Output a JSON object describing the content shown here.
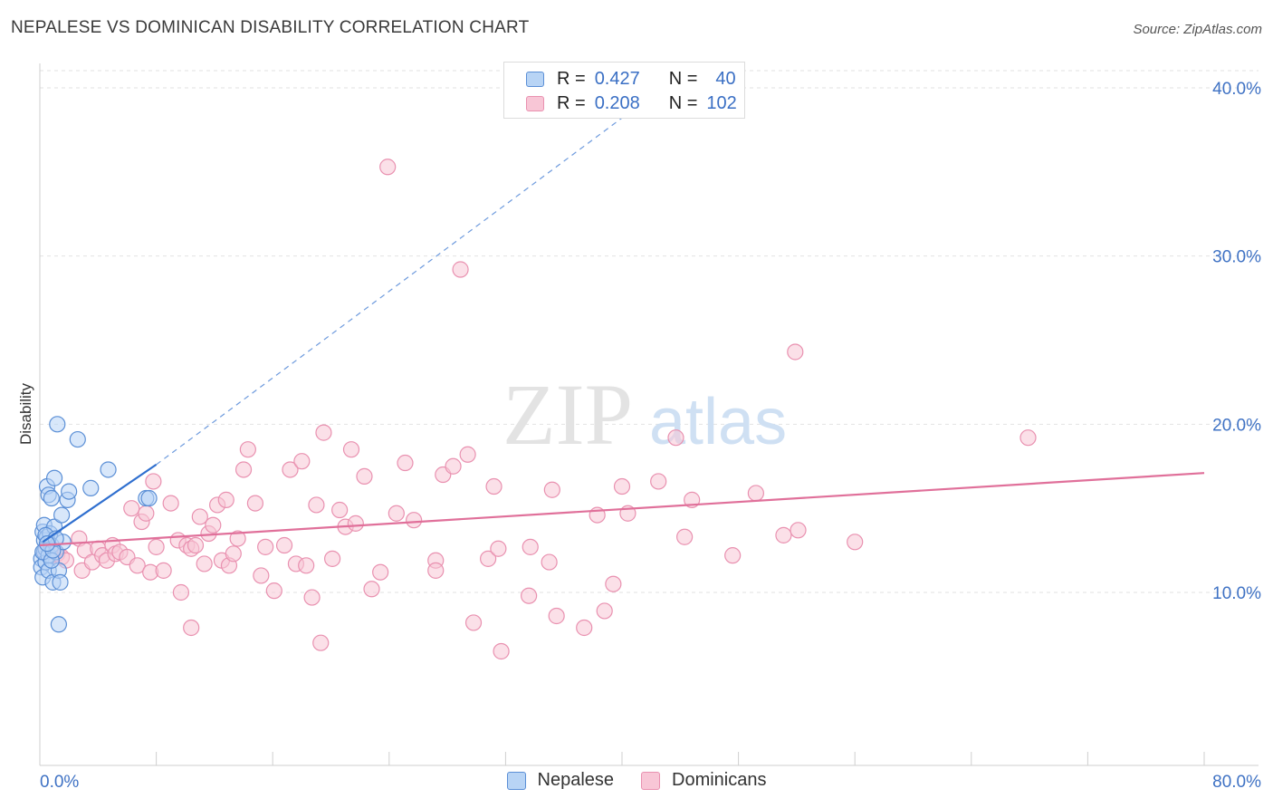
{
  "header": {
    "title": "NEPALESE VS DOMINICAN DISABILITY CORRELATION CHART",
    "source": "Source: ZipAtlas.com"
  },
  "watermark": {
    "part1": "ZIP",
    "part2": "atlas"
  },
  "legend_top": {
    "rows": [
      {
        "r_label": "R =",
        "r_value": "0.427",
        "n_label": "N =",
        "n_value": "40"
      },
      {
        "r_label": "R =",
        "r_value": "0.208",
        "n_label": "N =",
        "n_value": "102"
      }
    ]
  },
  "legend_bottom": {
    "items": [
      "Nepalese",
      "Dominicans"
    ]
  },
  "colors": {
    "nepalese_fill": "#b8d4f5",
    "nepalese_stroke": "#5b8fd6",
    "nepalese_line": "#2f6fcf",
    "dominican_fill": "#f8c6d6",
    "dominican_stroke": "#e991b0",
    "dominican_line": "#e0709a",
    "axis_text": "#3f72c4",
    "grid": "#e2e2e2"
  },
  "chart_data": {
    "type": "scatter",
    "title": "NEPALESE VS DOMINICAN DISABILITY CORRELATION CHART",
    "ylabel": "Disability",
    "xlabel": "",
    "xlim": [
      0,
      80
    ],
    "ylim": [
      0,
      42
    ],
    "x_tick_labels": [
      "0.0%",
      "80.0%"
    ],
    "y_ticks": [
      10,
      20,
      30,
      40
    ],
    "y_tick_labels": [
      "10.0%",
      "20.0%",
      "30.0%",
      "40.0%"
    ],
    "grid": true,
    "legend_position": "top-center",
    "series": [
      {
        "name": "Nepalese",
        "r": 0.427,
        "n": 40,
        "trend": {
          "x0": 0.2,
          "y0": 13.0,
          "x1": 8.0,
          "y1": 17.6,
          "dash_to_x": 42.0,
          "dash_to_y": 39.5
        },
        "points": [
          [
            0.1,
            12.0
          ],
          [
            0.1,
            11.5
          ],
          [
            0.2,
            10.9
          ],
          [
            0.2,
            13.6
          ],
          [
            0.3,
            12.4
          ],
          [
            0.3,
            13.1
          ],
          [
            0.3,
            14.0
          ],
          [
            0.4,
            11.8
          ],
          [
            0.4,
            12.6
          ],
          [
            0.5,
            13.3
          ],
          [
            0.5,
            16.3
          ],
          [
            0.6,
            15.8
          ],
          [
            0.6,
            12.2
          ],
          [
            0.6,
            11.3
          ],
          [
            0.7,
            13.5
          ],
          [
            0.8,
            15.6
          ],
          [
            0.8,
            12.8
          ],
          [
            0.9,
            10.6
          ],
          [
            1.0,
            16.8
          ],
          [
            1.0,
            13.9
          ],
          [
            1.1,
            12.4
          ],
          [
            1.2,
            20.0
          ],
          [
            1.3,
            11.3
          ],
          [
            1.4,
            10.6
          ],
          [
            1.5,
            14.6
          ],
          [
            1.6,
            13.0
          ],
          [
            1.9,
            15.5
          ],
          [
            2.0,
            16.0
          ],
          [
            1.3,
            8.1
          ],
          [
            2.6,
            19.1
          ],
          [
            3.5,
            16.2
          ],
          [
            4.7,
            17.3
          ],
          [
            7.3,
            15.6
          ],
          [
            7.5,
            15.6
          ],
          [
            0.2,
            12.4
          ],
          [
            0.4,
            13.4
          ],
          [
            0.8,
            11.9
          ],
          [
            0.9,
            12.5
          ],
          [
            1.1,
            13.2
          ],
          [
            0.5,
            12.9
          ]
        ]
      },
      {
        "name": "Dominicans",
        "r": 0.208,
        "n": 102,
        "trend": {
          "x0": 0.0,
          "y0": 12.8,
          "x1": 80.0,
          "y1": 17.1
        },
        "points": [
          [
            0.4,
            12.4
          ],
          [
            0.8,
            12.2
          ],
          [
            1.2,
            12.3
          ],
          [
            1.5,
            12.1
          ],
          [
            1.8,
            11.9
          ],
          [
            2.7,
            13.2
          ],
          [
            2.9,
            11.3
          ],
          [
            3.1,
            12.5
          ],
          [
            3.6,
            11.8
          ],
          [
            4.0,
            12.6
          ],
          [
            4.3,
            12.2
          ],
          [
            4.6,
            11.9
          ],
          [
            5.0,
            12.8
          ],
          [
            5.2,
            12.3
          ],
          [
            5.5,
            12.4
          ],
          [
            6.0,
            12.1
          ],
          [
            6.3,
            15.0
          ],
          [
            6.7,
            11.6
          ],
          [
            7.0,
            14.2
          ],
          [
            7.3,
            14.7
          ],
          [
            7.6,
            11.2
          ],
          [
            7.8,
            16.6
          ],
          [
            8.0,
            12.7
          ],
          [
            8.5,
            11.3
          ],
          [
            9.0,
            15.3
          ],
          [
            9.5,
            13.1
          ],
          [
            9.7,
            10.0
          ],
          [
            10.1,
            12.8
          ],
          [
            10.4,
            12.6
          ],
          [
            10.7,
            12.8
          ],
          [
            11.0,
            14.5
          ],
          [
            11.3,
            11.7
          ],
          [
            11.6,
            13.5
          ],
          [
            11.9,
            14.0
          ],
          [
            12.2,
            15.2
          ],
          [
            12.5,
            11.9
          ],
          [
            12.8,
            15.5
          ],
          [
            13.0,
            11.6
          ],
          [
            13.3,
            12.3
          ],
          [
            13.6,
            13.2
          ],
          [
            14.0,
            17.3
          ],
          [
            14.3,
            18.5
          ],
          [
            14.8,
            15.3
          ],
          [
            15.2,
            11.0
          ],
          [
            15.5,
            12.7
          ],
          [
            16.1,
            10.1
          ],
          [
            16.8,
            12.8
          ],
          [
            17.2,
            17.3
          ],
          [
            17.6,
            11.7
          ],
          [
            18.0,
            17.8
          ],
          [
            18.3,
            11.6
          ],
          [
            18.7,
            9.7
          ],
          [
            19.0,
            15.2
          ],
          [
            19.5,
            19.5
          ],
          [
            20.1,
            12.0
          ],
          [
            20.6,
            14.9
          ],
          [
            21.0,
            13.9
          ],
          [
            21.4,
            18.5
          ],
          [
            21.7,
            14.1
          ],
          [
            22.3,
            16.9
          ],
          [
            22.8,
            10.2
          ],
          [
            23.4,
            11.2
          ],
          [
            23.9,
            35.3
          ],
          [
            24.5,
            14.7
          ],
          [
            25.1,
            17.7
          ],
          [
            25.7,
            14.3
          ],
          [
            27.2,
            11.9
          ],
          [
            27.7,
            17.0
          ],
          [
            28.4,
            17.5
          ],
          [
            28.9,
            29.2
          ],
          [
            29.4,
            18.2
          ],
          [
            29.8,
            8.2
          ],
          [
            30.8,
            12.0
          ],
          [
            31.2,
            16.3
          ],
          [
            31.5,
            12.6
          ],
          [
            31.7,
            6.5
          ],
          [
            33.6,
            9.8
          ],
          [
            33.7,
            12.7
          ],
          [
            35.0,
            11.8
          ],
          [
            35.2,
            16.1
          ],
          [
            35.5,
            8.6
          ],
          [
            37.4,
            7.9
          ],
          [
            38.3,
            14.6
          ],
          [
            38.8,
            8.9
          ],
          [
            39.4,
            10.5
          ],
          [
            40.0,
            16.3
          ],
          [
            40.4,
            14.7
          ],
          [
            42.5,
            16.6
          ],
          [
            43.7,
            19.2
          ],
          [
            44.3,
            13.3
          ],
          [
            44.8,
            15.5
          ],
          [
            47.6,
            12.2
          ],
          [
            49.2,
            15.9
          ],
          [
            51.1,
            13.4
          ],
          [
            51.9,
            24.3
          ],
          [
            52.1,
            13.7
          ],
          [
            56.0,
            13.0
          ],
          [
            67.9,
            19.2
          ],
          [
            0.7,
            12.5
          ],
          [
            10.4,
            7.9
          ],
          [
            19.3,
            7.0
          ],
          [
            27.2,
            11.3
          ]
        ]
      }
    ]
  }
}
